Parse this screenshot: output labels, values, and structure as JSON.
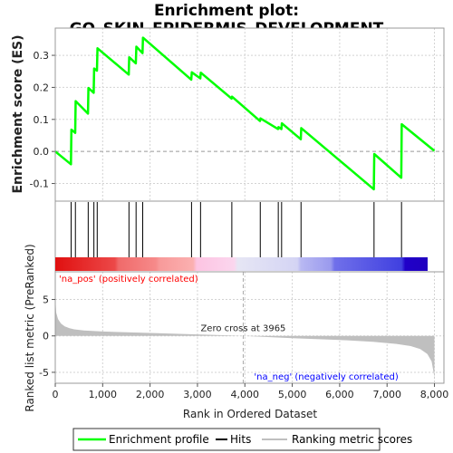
{
  "title": "Enrichment plot: GO_SKIN_EPIDERMIS_DEVELOPMENT",
  "colors": {
    "enrichment": "#00ff00",
    "hits": "#000000",
    "ranking": "#bfbfbf",
    "pos_label": "#ff0000",
    "neg_label": "#0000ff",
    "grid": "#d3d3d3"
  },
  "chart_data": [
    {
      "type": "line",
      "panel": "enrichment",
      "ylabel": "Enrichment score (ES)",
      "xlim": [
        0,
        8200
      ],
      "ylim": [
        -0.155,
        0.385
      ],
      "yticks": [
        -0.1,
        0.0,
        0.1,
        0.2,
        0.3
      ],
      "ytick_labels": [
        "-0.1",
        "0.0",
        "0.1",
        "0.2",
        "0.3"
      ],
      "grid": true,
      "series": [
        {
          "name": "Enrichment profile",
          "x": [
            0,
            330,
            340,
            420,
            430,
            690,
            700,
            810,
            820,
            880,
            890,
            1550,
            1560,
            1700,
            1710,
            1840,
            1850,
            2870,
            2880,
            3060,
            3070,
            3720,
            3730,
            4320,
            4330,
            4700,
            4710,
            4770,
            4780,
            5180,
            5190,
            6720,
            6730,
            7300,
            7310,
            8000
          ],
          "y": [
            0.0,
            -0.04,
            0.068,
            0.058,
            0.157,
            0.118,
            0.198,
            0.183,
            0.259,
            0.252,
            0.322,
            0.24,
            0.294,
            0.275,
            0.327,
            0.307,
            0.355,
            0.224,
            0.247,
            0.228,
            0.246,
            0.165,
            0.171,
            0.095,
            0.103,
            0.07,
            0.076,
            0.07,
            0.088,
            0.038,
            0.073,
            -0.118,
            -0.008,
            -0.082,
            0.085,
            0.002
          ]
        }
      ]
    },
    {
      "type": "scatter",
      "panel": "hits",
      "series": [
        {
          "name": "Hits",
          "x": [
            335,
            425,
            695,
            815,
            885,
            1555,
            1705,
            1845,
            2875,
            3065,
            3725,
            4325,
            4705,
            4775,
            5185,
            6725,
            7305
          ]
        }
      ]
    },
    {
      "type": "area",
      "panel": "ranking",
      "ylabel": "Ranked list metric (PreRanked)",
      "xlabel": "Rank in Ordered Dataset",
      "xlim": [
        0,
        8200
      ],
      "ylim": [
        -6.5,
        8.8
      ],
      "xticks": [
        0,
        1000,
        2000,
        3000,
        4000,
        5000,
        6000,
        7000,
        8000
      ],
      "xtick_labels": [
        "0",
        "1,000",
        "2,000",
        "3,000",
        "4,000",
        "5,000",
        "6,000",
        "7,000",
        "8,000"
      ],
      "yticks": [
        -5,
        0,
        5
      ],
      "ytick_labels": [
        "-5",
        "0",
        "5"
      ],
      "grid": true,
      "series": [
        {
          "name": "Ranking metric scores",
          "x": [
            0,
            20,
            60,
            120,
            200,
            300,
            400,
            600,
            1000,
            2000,
            3000,
            3965,
            5000,
            6000,
            6700,
            7200,
            7500,
            7700,
            7850,
            7940,
            7990,
            8000
          ],
          "y": [
            5.3,
            3.2,
            2.3,
            1.7,
            1.3,
            1.05,
            0.9,
            0.75,
            0.6,
            0.4,
            0.2,
            0.0,
            -0.3,
            -0.55,
            -0.8,
            -1.1,
            -1.4,
            -1.8,
            -2.5,
            -3.5,
            -5.3,
            -6.2
          ]
        }
      ],
      "zero_cross": 3965,
      "annotations": {
        "zero_cross": "Zero cross at 3965",
        "pos": "'na_pos' (positively correlated)",
        "neg": "'na_neg' (negatively correlated)"
      }
    }
  ],
  "legend": {
    "placement": "bottom",
    "items": [
      "Enrichment profile",
      "Hits",
      "Ranking metric scores"
    ]
  }
}
